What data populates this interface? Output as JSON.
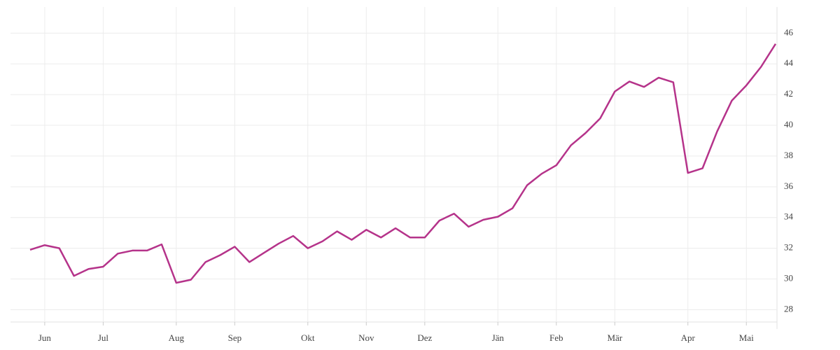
{
  "chart_data": {
    "type": "line",
    "categories": [
      null,
      "Jun",
      null,
      null,
      null,
      "Jul",
      null,
      null,
      null,
      null,
      "Aug",
      null,
      null,
      null,
      "Sep",
      null,
      null,
      null,
      null,
      "Okt",
      null,
      null,
      null,
      "Nov",
      null,
      null,
      null,
      "Dez",
      null,
      null,
      null,
      null,
      "Jän",
      null,
      null,
      null,
      "Feb",
      null,
      null,
      null,
      "Mär",
      null,
      null,
      null,
      null,
      "Apr",
      null,
      null,
      null,
      "Mai",
      null,
      null
    ],
    "series": [
      {
        "color": "#b5338a",
        "values": [
          31.9,
          32.2,
          32.0,
          30.2,
          30.65,
          30.8,
          31.65,
          31.85,
          31.85,
          32.25,
          29.75,
          29.95,
          31.1,
          31.55,
          32.1,
          31.1,
          31.7,
          32.3,
          32.8,
          32.0,
          32.45,
          33.1,
          32.55,
          33.2,
          32.7,
          33.3,
          32.7,
          32.7,
          33.8,
          34.25,
          33.4,
          33.85,
          34.05,
          34.6,
          36.1,
          36.85,
          37.4,
          38.7,
          39.5,
          40.45,
          42.2,
          42.85,
          42.5,
          43.1,
          42.8,
          36.9,
          37.2,
          39.6,
          41.6,
          42.6,
          43.8,
          45.3
        ]
      }
    ],
    "ylim": [
      27.2,
      47.7
    ],
    "yticks": [
      28,
      30,
      32,
      34,
      36,
      38,
      40,
      42,
      44,
      46
    ],
    "grid": true,
    "y_axis_side": "right"
  }
}
